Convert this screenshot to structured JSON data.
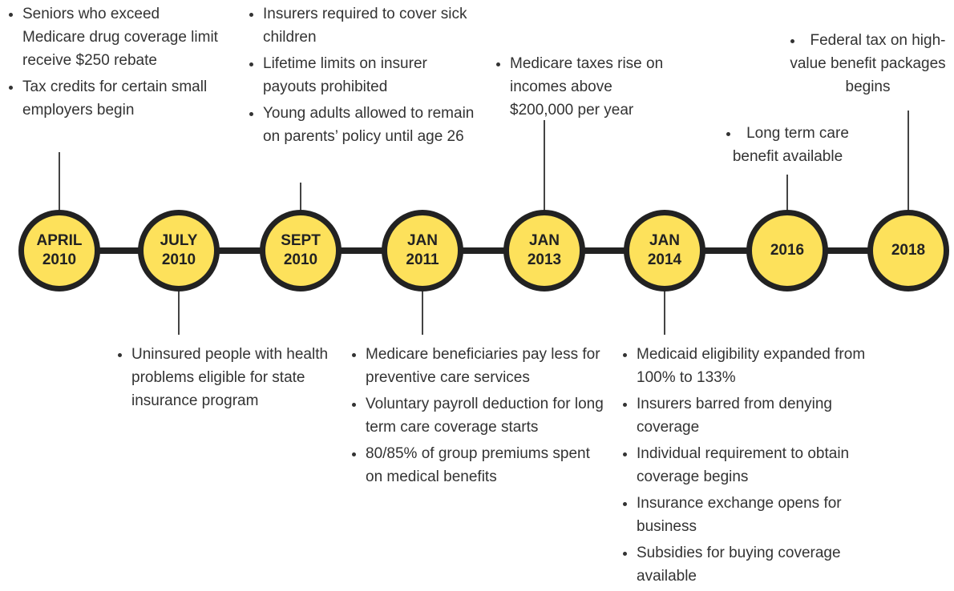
{
  "milestones": [
    {
      "date": [
        "APRIL",
        "2010"
      ],
      "items": [
        "Seniors who exceed Medicare drug coverage limit receive $250 rebate",
        "Tax credits for certain small employers begin"
      ]
    },
    {
      "date": [
        "JULY",
        "2010"
      ],
      "items": [
        "Uninsured people with health problems eligible for state insurance program"
      ]
    },
    {
      "date": [
        "SEPT",
        "2010"
      ],
      "items": [
        "Insurers required to cover sick children",
        "Lifetime limits on insurer payouts prohibited",
        "Young adults allowed to remain on parents’ policy until age 26"
      ]
    },
    {
      "date": [
        "JAN",
        "2011"
      ],
      "items": [
        "Medicare beneficiaries pay less for preventive care services",
        "Voluntary payroll deduction for long term care coverage starts",
        "80/85% of group premiums spent on medical benefits"
      ]
    },
    {
      "date": [
        "JAN",
        "2013"
      ],
      "items": [
        "Medicare taxes rise on incomes above $200,000 per year"
      ]
    },
    {
      "date": [
        "JAN",
        "2014"
      ],
      "items": [
        "Medicaid eligibility expanded from 100% to 133%",
        "Insurers barred from denying coverage",
        "Individual requirement to obtain coverage begins",
        "Insurance exchange opens for business",
        "Subsidies for buying coverage available"
      ]
    },
    {
      "date": [
        "2016"
      ],
      "items": [
        "Long term care benefit available"
      ]
    },
    {
      "date": [
        "2018"
      ],
      "items": [
        "Federal tax on high-value benefit packages begins"
      ]
    }
  ]
}
